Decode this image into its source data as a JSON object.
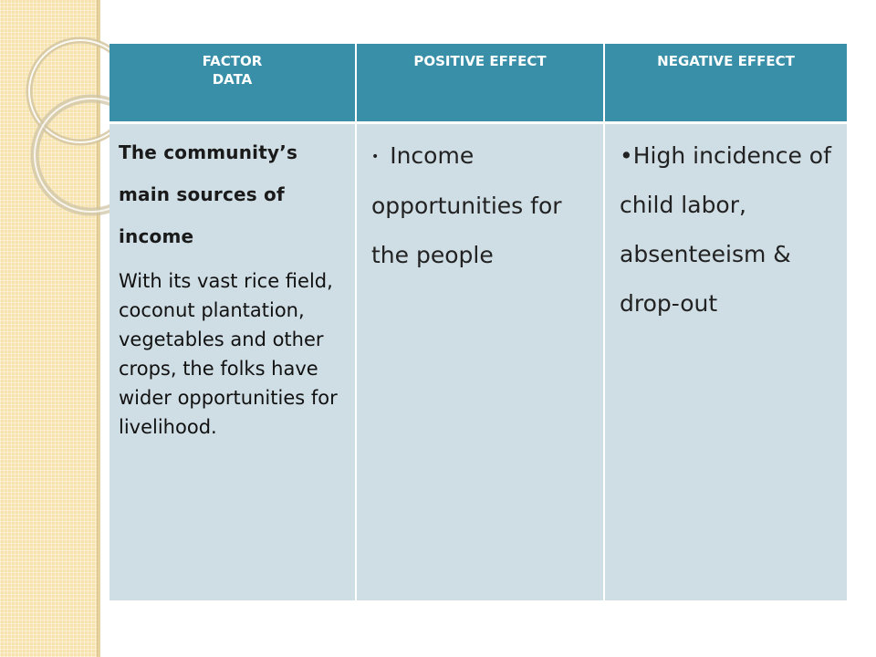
{
  "table": {
    "headers": {
      "factor_line1": "FACTOR",
      "factor_line2": "DATA",
      "positive": "POSITIVE EFFECT",
      "negative": "NEGATIVE EFFECT"
    },
    "row": {
      "factor_title": "The community’s main sources of income",
      "factor_description": "With its vast rice field, coconut plantation, vegetables and other crops, the folks have wider opportunities for livelihood.",
      "positive_bullet": "•",
      "positive_text": "Income opportunities for the people",
      "negative_bullet": "•",
      "negative_text": "High incidence of child labor, absenteeism & drop-out"
    }
  },
  "colors": {
    "header_bg": "#3a8fa8",
    "cell_bg": "#cfdde4",
    "side_strip": "#f6e3b0"
  }
}
